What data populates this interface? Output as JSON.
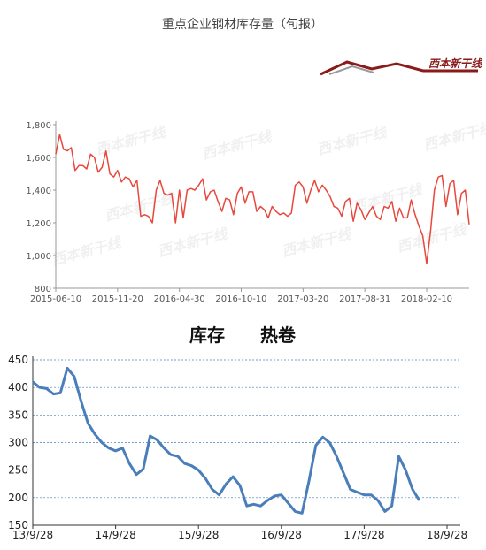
{
  "chart_data": [
    {
      "type": "line",
      "title": "重点企业钢材库存量（旬报）",
      "logo": "西本新干线",
      "color": "#e8473c",
      "categories": [
        "2015-06-10",
        null,
        null,
        null,
        null,
        null,
        null,
        null,
        null,
        null,
        null,
        null,
        null,
        null,
        null,
        null,
        "2015-11-20",
        null,
        null,
        null,
        null,
        null,
        null,
        null,
        null,
        null,
        null,
        null,
        null,
        null,
        null,
        null,
        "2016-04-30",
        null,
        null,
        null,
        null,
        null,
        null,
        null,
        null,
        null,
        null,
        null,
        null,
        null,
        null,
        null,
        "2016-10-10",
        null,
        null,
        null,
        null,
        null,
        null,
        null,
        null,
        null,
        null,
        null,
        null,
        null,
        null,
        null,
        "2017-03-20",
        null,
        null,
        null,
        null,
        null,
        null,
        null,
        null,
        null,
        null,
        null,
        null,
        null,
        null,
        null,
        "2017-08-31",
        null,
        null,
        null,
        null,
        null,
        null,
        null,
        null,
        null,
        null,
        null,
        null,
        null,
        null,
        null,
        "2018-02-10",
        null,
        null,
        null,
        null,
        null,
        null,
        null,
        null,
        null,
        null,
        null
      ],
      "values": [
        1620,
        1740,
        1650,
        1640,
        1660,
        1520,
        1550,
        1550,
        1530,
        1620,
        1600,
        1510,
        1540,
        1640,
        1500,
        1480,
        1520,
        1450,
        1480,
        1470,
        1420,
        1460,
        1240,
        1250,
        1240,
        1200,
        1400,
        1460,
        1380,
        1370,
        1380,
        1200,
        1400,
        1230,
        1400,
        1410,
        1400,
        1430,
        1470,
        1340,
        1390,
        1400,
        1330,
        1270,
        1350,
        1340,
        1250,
        1380,
        1420,
        1320,
        1390,
        1390,
        1270,
        1300,
        1280,
        1230,
        1300,
        1270,
        1250,
        1260,
        1240,
        1260,
        1430,
        1450,
        1420,
        1320,
        1400,
        1460,
        1390,
        1430,
        1400,
        1360,
        1300,
        1290,
        1240,
        1330,
        1350,
        1210,
        1320,
        1280,
        1220,
        1260,
        1300,
        1240,
        1220,
        1300,
        1290,
        1330,
        1210,
        1290,
        1230,
        1230,
        1340,
        1250,
        1180,
        1120,
        950,
        1150,
        1400,
        1480,
        1490,
        1300,
        1440,
        1460,
        1250,
        1380,
        1400,
        1190
      ],
      "ylim": [
        800,
        1800
      ],
      "yticks": [
        800,
        {
          "value": 1000,
          "label": "1,000"
        },
        {
          "value": 1200,
          "label": "1,200"
        },
        {
          "value": 1400,
          "label": "1,400"
        },
        {
          "value": 1600,
          "label": "1,600"
        },
        {
          "value": 1800,
          "label": "1,800"
        }
      ],
      "grid": false
    },
    {
      "type": "line",
      "title": "库存　　热卷",
      "color": "#4a7ebb",
      "categories": [
        "13/9/28",
        null,
        null,
        null,
        null,
        null,
        null,
        null,
        null,
        null,
        null,
        null,
        "14/9/28",
        null,
        null,
        null,
        null,
        null,
        null,
        null,
        null,
        null,
        null,
        null,
        "15/9/28",
        null,
        null,
        null,
        null,
        null,
        null,
        null,
        null,
        null,
        null,
        null,
        "16/9/28",
        null,
        null,
        null,
        null,
        null,
        null,
        null,
        null,
        null,
        null,
        null,
        "17/9/28",
        null,
        null,
        null,
        null,
        null,
        null,
        null,
        null,
        null,
        null,
        null,
        "18/9/28"
      ],
      "values": [
        410,
        400,
        398,
        388,
        390,
        435,
        420,
        375,
        335,
        315,
        300,
        290,
        285,
        290,
        262,
        242,
        252,
        312,
        305,
        290,
        278,
        275,
        262,
        258,
        250,
        235,
        215,
        205,
        225,
        238,
        222,
        185,
        188,
        185,
        195,
        203,
        205,
        190,
        175,
        172,
        230,
        295,
        310,
        300,
        275,
        245,
        215,
        210,
        205,
        205,
        195,
        175,
        185,
        275,
        250,
        215,
        195,
        null,
        null,
        null,
        null
      ],
      "ylim": [
        150,
        450
      ],
      "yticks": [
        150,
        200,
        250,
        300,
        350,
        400,
        450
      ],
      "grid": true
    }
  ]
}
